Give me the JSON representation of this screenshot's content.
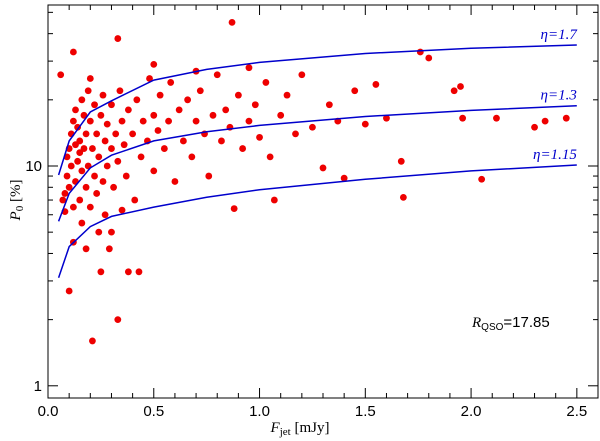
{
  "chart_data": {
    "type": "scatter",
    "xlabel": {
      "symbol": "F",
      "subscript": "jet",
      "text": " [mJy]"
    },
    "ylabel": {
      "symbol": "P",
      "subscript": "0",
      "text": " [%]"
    },
    "annotation": {
      "symbol": "R",
      "subscript": "QSO",
      "text": "=17.85"
    },
    "xlim": [
      0,
      2.6
    ],
    "ylim": [
      0.88,
      54
    ],
    "log_y": true,
    "xticks": [
      {
        "value": 0,
        "label": "0.0"
      },
      0.5,
      {
        "value": 1,
        "label": "1.0"
      },
      1.5,
      {
        "value": 2,
        "label": "2.0"
      },
      2.5
    ],
    "xminorticks": [
      0.1,
      0.2,
      0.3,
      0.4,
      0.6,
      0.7,
      0.8,
      0.9,
      1.1,
      1.2,
      1.3,
      1.4,
      1.6,
      1.7,
      1.8,
      1.9,
      2.1,
      2.2,
      2.3,
      2.4
    ],
    "yticks": [
      1,
      10
    ],
    "yminorticks": [
      2,
      3,
      4,
      5,
      6,
      7,
      8,
      9,
      20,
      30,
      40,
      50
    ],
    "points": {
      "color": "#ee0000",
      "x": [
        0.06,
        0.12,
        0.33,
        0.87,
        0.07,
        0.08,
        0.08,
        0.09,
        0.09,
        0.1,
        0.1,
        0.1,
        0.11,
        0.11,
        0.12,
        0.12,
        0.12,
        0.13,
        0.13,
        0.13,
        0.14,
        0.14,
        0.15,
        0.15,
        0.15,
        0.16,
        0.16,
        0.16,
        0.17,
        0.17,
        0.18,
        0.18,
        0.18,
        0.19,
        0.19,
        0.2,
        0.2,
        0.21,
        0.21,
        0.22,
        0.22,
        0.23,
        0.23,
        0.24,
        0.24,
        0.25,
        0.25,
        0.26,
        0.26,
        0.27,
        0.27,
        0.28,
        0.28,
        0.29,
        0.3,
        0.3,
        0.31,
        0.32,
        0.33,
        0.33,
        0.34,
        0.35,
        0.35,
        0.36,
        0.37,
        0.38,
        0.38,
        0.4,
        0.41,
        0.42,
        0.43,
        0.44,
        0.45,
        0.47,
        0.48,
        0.5,
        0.5,
        0.52,
        0.53,
        0.55,
        0.57,
        0.58,
        0.6,
        0.62,
        0.64,
        0.66,
        0.68,
        0.7,
        0.72,
        0.74,
        0.76,
        0.78,
        0.8,
        0.82,
        0.84,
        0.86,
        0.88,
        0.9,
        0.92,
        0.95,
        0.98,
        1.0,
        1.03,
        1.05,
        1.07,
        1.1,
        1.13,
        1.17,
        1.2,
        1.25,
        1.3,
        1.33,
        1.37,
        1.4,
        1.45,
        1.5,
        1.55,
        1.6,
        1.67,
        1.68,
        1.76,
        1.8,
        1.92,
        1.95,
        1.96,
        2.05,
        2.12,
        2.3,
        2.35,
        2.45,
        0.95,
        0.7,
        0.5,
        0.2,
        0.3
      ],
      "values": [
        26,
        33,
        38,
        45,
        7,
        6.2,
        7.5,
        9,
        11,
        12,
        8,
        2.7,
        14,
        10,
        16,
        4.5,
        6.5,
        12.5,
        8.5,
        18,
        10.5,
        15,
        7,
        13,
        11.5,
        20,
        9.5,
        5.5,
        17,
        12,
        8,
        14,
        4.2,
        22,
        10,
        6.5,
        16,
        1.6,
        12,
        9,
        19,
        7.5,
        14,
        5,
        11,
        3.3,
        17,
        8.5,
        21,
        13,
        6,
        10,
        15.5,
        4.2,
        12,
        19,
        8,
        14,
        2.0,
        10.5,
        22,
        6.3,
        16,
        12.5,
        9,
        3.3,
        18,
        14,
        7,
        20,
        3.3,
        11,
        16,
        13,
        25,
        9.5,
        17,
        14.5,
        21,
        12,
        16,
        24,
        8.5,
        18,
        13,
        20,
        11,
        16,
        22,
        14,
        9,
        17,
        26,
        13,
        18,
        15,
        6.4,
        21,
        12,
        16,
        19,
        13.5,
        24,
        11,
        7.0,
        17,
        21,
        14,
        26,
        15,
        9.8,
        19,
        16,
        8.8,
        22,
        15.5,
        23.5,
        16.5,
        10.5,
        7.2,
        33,
        31,
        22,
        23,
        16.5,
        8.7,
        16.5,
        15,
        16,
        16.5,
        28,
        27,
        29,
        25,
        5
      ]
    },
    "curves": [
      {
        "name": "η=1.7",
        "color": "#0000cc",
        "x": [
          0.05,
          0.1,
          0.2,
          0.3,
          0.5,
          0.75,
          1.0,
          1.5,
          2.0,
          2.5
        ],
        "values": [
          9.1,
          13,
          17.6,
          19.8,
          24.6,
          27.5,
          29.6,
          32.5,
          34.3,
          35.5
        ]
      },
      {
        "name": "η=1.3",
        "color": "#0000cc",
        "x": [
          0.05,
          0.1,
          0.2,
          0.3,
          0.5,
          0.75,
          1.0,
          1.5,
          2.0,
          2.5
        ],
        "values": [
          5.6,
          7.5,
          9.8,
          11.2,
          13,
          14.3,
          15.3,
          16.8,
          17.9,
          18.8
        ]
      },
      {
        "name": "η=1.15",
        "color": "#0000cc",
        "x": [
          0.05,
          0.1,
          0.2,
          0.3,
          0.5,
          0.75,
          1.0,
          1.5,
          2.0,
          2.5
        ],
        "values": [
          3.1,
          4.3,
          5.3,
          5.9,
          6.5,
          7.2,
          7.8,
          8.7,
          9.5,
          10.1
        ]
      }
    ]
  }
}
